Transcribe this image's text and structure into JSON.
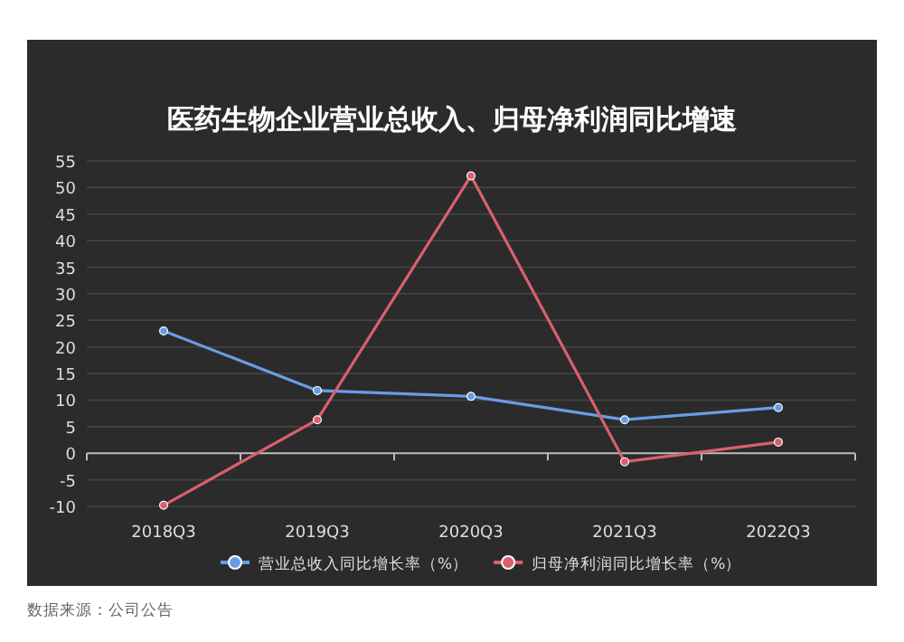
{
  "chart_data": {
    "type": "line",
    "title": "医药生物企业营业总收入、归母净利润同比增速",
    "categories": [
      "2018Q3",
      "2019Q3",
      "2020Q3",
      "2021Q3",
      "2022Q3"
    ],
    "series": [
      {
        "name": "营业总收入同比增长率（%）",
        "color": "#6a9ce6",
        "values": [
          23,
          11.8,
          10.7,
          6.3,
          8.6
        ]
      },
      {
        "name": "归母净利润同比增长率（%）",
        "color": "#d9606f",
        "values": [
          -9.8,
          6.3,
          52.2,
          -1.6,
          2.1
        ]
      }
    ],
    "ylim": [
      -10,
      55
    ],
    "yticks": [
      -10,
      -5,
      0,
      5,
      10,
      15,
      20,
      25,
      30,
      35,
      40,
      45,
      50,
      55
    ],
    "grid": "y",
    "marker": "circle",
    "legend": "bottom",
    "annotations": [
      "数据来源：公司公告"
    ]
  }
}
